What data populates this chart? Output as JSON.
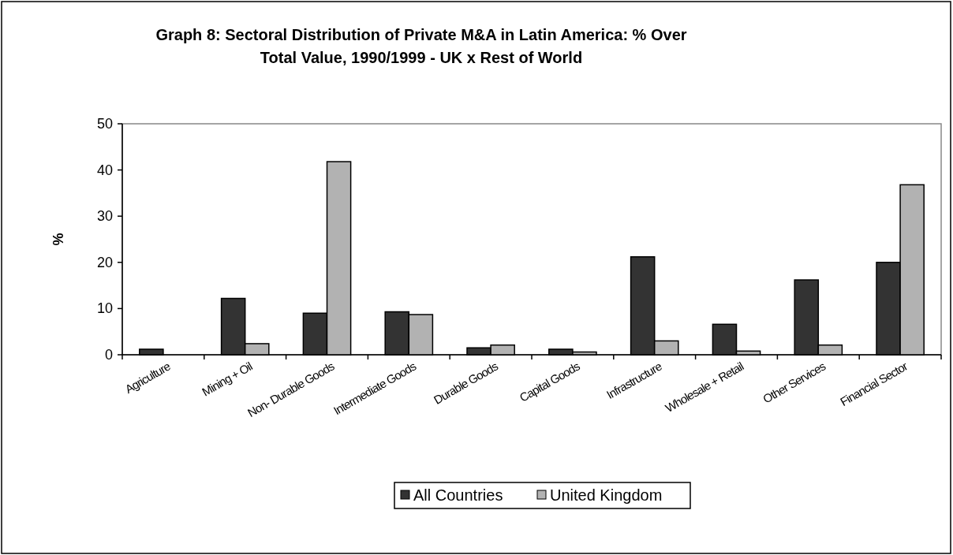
{
  "chart_data": {
    "type": "bar",
    "title": "Graph 8: Sectoral Distribution of Private M&A in Latin America: % Over Total Value, 1990/1999 - UK x Rest of World",
    "ylabel": "%",
    "categories": [
      "Agriculture",
      "Mining + Oil",
      "Non- Durable Goods",
      "Intermediate Goods",
      "Durable Goods",
      "Capital Goods",
      "Infrastructure",
      "Wholesale + Retail",
      "Other Services",
      "Financial Sector"
    ],
    "series": [
      {
        "name": "All Countries",
        "color": "#333333",
        "values": [
          1.2,
          12.2,
          9.0,
          9.3,
          1.5,
          1.2,
          21.2,
          6.6,
          16.2,
          20.0
        ]
      },
      {
        "name": "United Kingdom",
        "color": "#b2b2b2",
        "values": [
          0,
          2.4,
          41.8,
          8.7,
          2.1,
          0.6,
          3.0,
          0.8,
          2.1,
          36.8
        ]
      }
    ],
    "ylim": [
      0,
      50
    ],
    "yticks": [
      0,
      10,
      20,
      30,
      40,
      50
    ],
    "grid": false,
    "legend": "bottom"
  }
}
